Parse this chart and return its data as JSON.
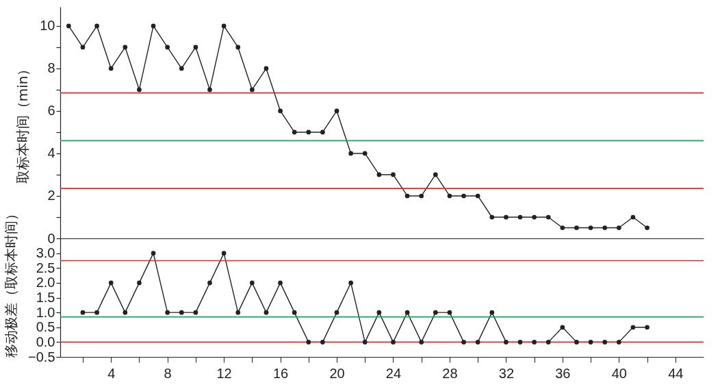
{
  "chart_data": [
    {
      "type": "line",
      "ylabel": "取标本时间（min）",
      "x": [
        1,
        2,
        3,
        4,
        5,
        6,
        7,
        8,
        9,
        10,
        11,
        12,
        13,
        14,
        15,
        16,
        17,
        18,
        19,
        20,
        21,
        22,
        23,
        24,
        25,
        26,
        27,
        28,
        29,
        30,
        31,
        32,
        33,
        34,
        35,
        36,
        37,
        38,
        39,
        40,
        41,
        42
      ],
      "series": [
        {
          "color": "#222222",
          "values": [
            10,
            9,
            10,
            8,
            9,
            7,
            10,
            9,
            8,
            9,
            7,
            10,
            9,
            7,
            8,
            6,
            5,
            5,
            5,
            6,
            4,
            4,
            3,
            3,
            2,
            2,
            3,
            2,
            2,
            2,
            1,
            1,
            1,
            1,
            1,
            0.5,
            0.5,
            0.5,
            0.5,
            0.5,
            1,
            0.5
          ]
        }
      ],
      "xlim": [
        0.4,
        46
      ],
      "ylim": [
        0,
        10.9
      ],
      "yticks": [
        0,
        {
          "value": 1,
          "label": null
        },
        2,
        {
          "value": 3,
          "label": null
        },
        4,
        {
          "value": 5,
          "label": null
        },
        6,
        {
          "value": 7,
          "label": null
        },
        8,
        {
          "value": 9,
          "label": null
        },
        10
      ],
      "ref_lines": [
        {
          "axis": "y",
          "value": 6.85,
          "color": "#e8282c"
        },
        {
          "axis": "y",
          "value": 4.6,
          "color": "#1aa64a"
        },
        {
          "axis": "y",
          "value": 2.35,
          "color": "#e8282c"
        }
      ],
      "tick_labels": "y",
      "grid": false,
      "marker": "circle",
      "line_style": "solid"
    },
    {
      "type": "line",
      "ylabel": "移动极差（取标本时间）",
      "x": [
        2,
        3,
        4,
        5,
        6,
        7,
        8,
        9,
        10,
        11,
        12,
        13,
        14,
        15,
        16,
        17,
        18,
        19,
        20,
        21,
        22,
        23,
        24,
        25,
        26,
        27,
        28,
        29,
        30,
        31,
        32,
        33,
        34,
        35,
        36,
        37,
        38,
        39,
        40,
        41,
        42
      ],
      "series": [
        {
          "color": "#222222",
          "values": [
            1,
            1,
            2,
            1,
            2,
            3,
            1,
            1,
            1,
            2,
            3,
            1,
            2,
            1,
            2,
            1,
            0,
            0,
            1,
            2,
            0,
            1,
            0,
            1,
            0,
            1,
            1,
            0,
            0,
            1,
            0,
            0,
            0,
            0,
            0.5,
            0,
            0,
            0,
            0,
            0.5,
            0.5
          ]
        }
      ],
      "xlim": [
        0.4,
        46
      ],
      "ylim": [
        -0.5,
        3.5
      ],
      "xticks": [
        {
          "value": 2,
          "label": null
        },
        4,
        {
          "value": 6,
          "label": null
        },
        8,
        {
          "value": 10,
          "label": null
        },
        12,
        {
          "value": 14,
          "label": null
        },
        16,
        {
          "value": 18,
          "label": null
        },
        20,
        {
          "value": 22,
          "label": null
        },
        24,
        {
          "value": 26,
          "label": null
        },
        28,
        {
          "value": 30,
          "label": null
        },
        32,
        {
          "value": 34,
          "label": null
        },
        36,
        {
          "value": 38,
          "label": null
        },
        40,
        {
          "value": 42,
          "label": null
        },
        44
      ],
      "yticks": [
        {
          "value": -0.5,
          "label": "−0.5"
        },
        {
          "value": 0,
          "label": "0.0"
        },
        0.5,
        {
          "value": 1,
          "label": "1.0"
        },
        1.5,
        {
          "value": 2,
          "label": "2.0"
        },
        2.5,
        {
          "value": 3,
          "label": "3.0"
        }
      ],
      "ref_lines": [
        {
          "axis": "y",
          "value": 2.75,
          "color": "#e8282c"
        },
        {
          "axis": "y",
          "value": 0.85,
          "color": "#1aa64a"
        },
        {
          "axis": "y",
          "value": 0,
          "color": "#e8282c"
        }
      ],
      "grid": false,
      "marker": "circle",
      "line_style": "solid"
    }
  ]
}
